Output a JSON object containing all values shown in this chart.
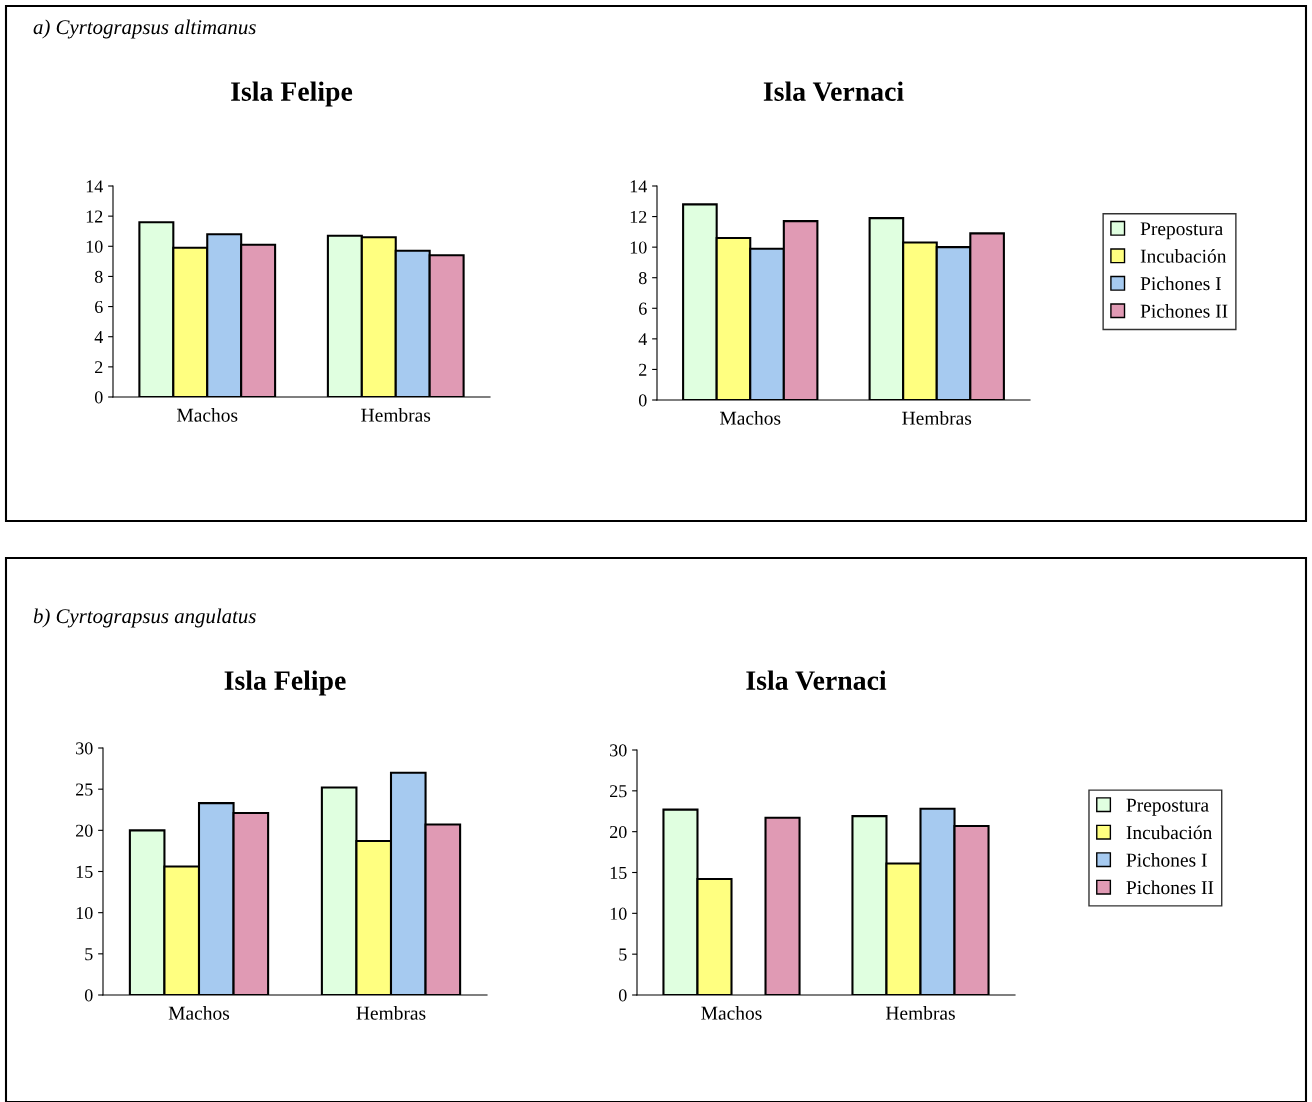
{
  "chart_data": [
    {
      "type": "bar",
      "title": "Isla Felipe",
      "categories": [
        "Machos",
        "Hembras"
      ],
      "annotations": [
        "a) Cyrtograpsus altimanus"
      ],
      "ylim": [
        0,
        14
      ],
      "yticks": [
        0,
        2,
        4,
        6,
        8,
        10,
        12,
        14
      ],
      "grid": false,
      "legend": false,
      "series": [
        {
          "color": "#e0ffe0",
          "values": [
            11.6,
            10.7
          ]
        },
        {
          "color": "#ffff80",
          "values": [
            9.9,
            10.6
          ]
        },
        {
          "color": "#a6caf0",
          "values": [
            10.8,
            9.7
          ]
        },
        {
          "color": "#e09ab4",
          "values": [
            10.1,
            9.4
          ]
        }
      ]
    },
    {
      "type": "bar",
      "title": "Isla Vernaci",
      "categories": [
        "Machos",
        "Hembras"
      ],
      "ylim": [
        0,
        14
      ],
      "yticks": [
        0,
        2,
        4,
        6,
        8,
        10,
        12,
        14
      ],
      "grid": false,
      "legend": "right",
      "series": [
        {
          "name": "Prepostura",
          "color": "#e0ffe0",
          "values": [
            12.8,
            11.9
          ]
        },
        {
          "name": "Incubación",
          "color": "#ffff80",
          "values": [
            10.6,
            10.3
          ]
        },
        {
          "name": "Pichones I",
          "color": "#a6caf0",
          "values": [
            9.9,
            10.0
          ]
        },
        {
          "name": "Pichones II",
          "color": "#e09ab4",
          "values": [
            11.7,
            10.9
          ]
        }
      ]
    },
    {
      "type": "bar",
      "title": "Isla Felipe",
      "categories": [
        "Machos",
        "Hembras"
      ],
      "annotations": [
        "b) Cyrtograpsus angulatus"
      ],
      "ylim": [
        0,
        30
      ],
      "yticks": [
        0,
        5,
        10,
        15,
        20,
        25,
        30
      ],
      "grid": false,
      "legend": false,
      "series": [
        {
          "color": "#e0ffe0",
          "values": [
            20.0,
            25.2
          ]
        },
        {
          "color": "#ffff80",
          "values": [
            15.6,
            18.7
          ]
        },
        {
          "color": "#a6caf0",
          "values": [
            23.3,
            27.0
          ]
        },
        {
          "color": "#e09ab4",
          "values": [
            22.1,
            20.7
          ]
        }
      ]
    },
    {
      "type": "bar",
      "title": "Isla Vernaci",
      "categories": [
        "Machos",
        "Hembras"
      ],
      "ylim": [
        0,
        30
      ],
      "yticks": [
        0,
        5,
        10,
        15,
        20,
        25,
        30
      ],
      "grid": false,
      "legend": "right",
      "series": [
        {
          "name": "Prepostura",
          "color": "#e0ffe0",
          "values": [
            22.7,
            21.9
          ]
        },
        {
          "name": "Incubación",
          "color": "#ffff80",
          "values": [
            14.2,
            16.1
          ]
        },
        {
          "name": "Pichones I",
          "color": "#a6caf0",
          "values": [
            null,
            22.8
          ]
        },
        {
          "name": "Pichones II",
          "color": "#e09ab4",
          "values": [
            21.7,
            20.7
          ]
        }
      ]
    }
  ]
}
